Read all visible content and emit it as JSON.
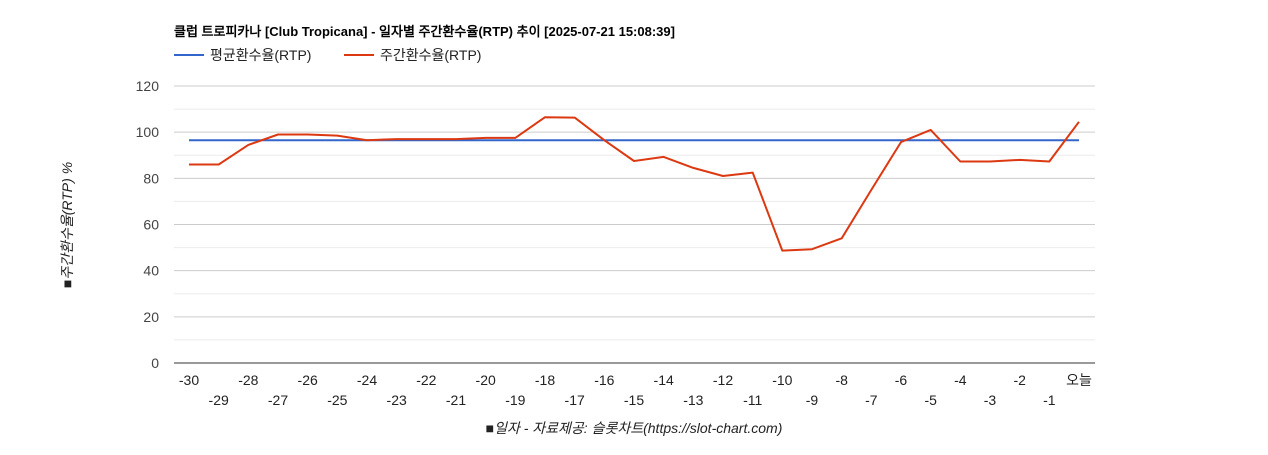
{
  "chart_data": {
    "type": "line",
    "title": "클럽 트로피카나 [Club Tropicana] - 일자별 주간환수율(RTP) 추이 [2025-07-21 15:08:39]",
    "xlabel": "■일자 - 자료제공: 슬롯차트(https://slot-chart.com)",
    "ylabel": "■주간환수율(RTP) %",
    "ylim": [
      0,
      120
    ],
    "yticks": [
      "0",
      "20",
      "40",
      "60",
      "80",
      "100",
      "120"
    ],
    "categories": [
      "-30",
      "-29",
      "-28",
      "-27",
      "-26",
      "-25",
      "-24",
      "-23",
      "-22",
      "-21",
      "-20",
      "-19",
      "-18",
      "-17",
      "-16",
      "-15",
      "-14",
      "-13",
      "-12",
      "-11",
      "-10",
      "-9",
      "-8",
      "-7",
      "-6",
      "-5",
      "-4",
      "-3",
      "-2",
      "-1",
      "오늘"
    ],
    "legend_position": "top-left",
    "grid": true,
    "series": [
      {
        "name": "평균환수율(RTP)",
        "color": "#3366cc",
        "values": [
          96.5,
          96.5,
          96.5,
          96.5,
          96.5,
          96.5,
          96.5,
          96.5,
          96.5,
          96.5,
          96.5,
          96.5,
          96.5,
          96.5,
          96.5,
          96.5,
          96.5,
          96.5,
          96.5,
          96.5,
          96.5,
          96.5,
          96.5,
          96.5,
          96.5,
          96.5,
          96.5,
          96.5,
          96.5,
          96.5,
          96.5
        ]
      },
      {
        "name": "주간환수율(RTP)",
        "color": "#dc3912",
        "values": [
          86,
          86,
          94.5,
          99,
          99,
          98.5,
          96.5,
          97,
          97,
          97,
          97.5,
          97.5,
          106.5,
          106.3,
          96.5,
          87.5,
          89.3,
          84.5,
          81,
          82.5,
          48.7,
          49.3,
          54,
          75,
          95.7,
          101,
          87.3,
          87.3,
          88,
          87.3,
          104.5
        ]
      }
    ]
  }
}
